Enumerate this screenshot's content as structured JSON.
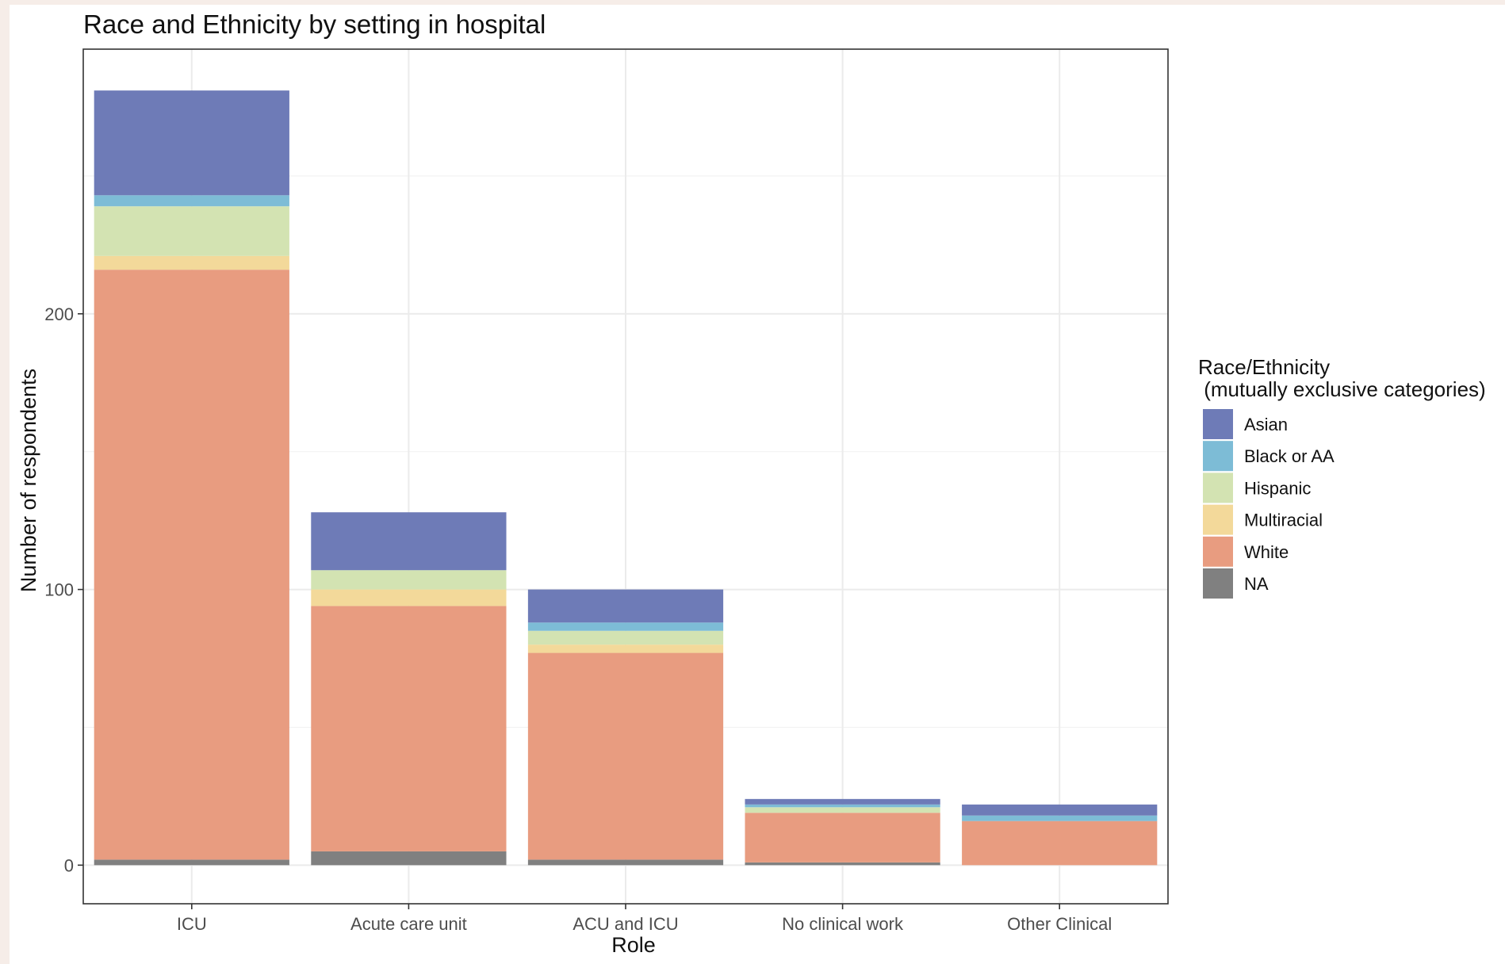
{
  "chart_data": {
    "type": "bar",
    "stacked": true,
    "title": "Race and Ethnicity by setting in hospital",
    "xlabel": "Role",
    "ylabel": "Number of respondents",
    "categories": [
      "ICU",
      "Acute care unit",
      "ACU and ICU",
      "No clinical work",
      "Other Clinical"
    ],
    "yticks": [
      0,
      100,
      200
    ],
    "ylim": [
      -14,
      296
    ],
    "grid": true,
    "legend": {
      "title_line1": "Race/Ethnicity",
      "title_line2": " (mutually exclusive categories)",
      "position": "right"
    },
    "series": [
      {
        "name": "NA",
        "color": "#808080",
        "values": [
          2,
          5,
          2,
          1,
          0
        ]
      },
      {
        "name": "White",
        "color": "#e89c80",
        "values": [
          214,
          89,
          75,
          18,
          16
        ]
      },
      {
        "name": "Multiracial",
        "color": "#f3d99a",
        "values": [
          5,
          6,
          3,
          0,
          0
        ]
      },
      {
        "name": "Hispanic",
        "color": "#d3e3b2",
        "values": [
          18,
          7,
          5,
          2,
          0
        ]
      },
      {
        "name": "Black or AA",
        "color": "#7dbcd6",
        "values": [
          4,
          0,
          3,
          1,
          2
        ]
      },
      {
        "name": "Asian",
        "color": "#6e7bb7",
        "values": [
          38,
          21,
          12,
          2,
          4
        ]
      }
    ],
    "legend_order": [
      "Asian",
      "Black or AA",
      "Hispanic",
      "Multiracial",
      "White",
      "NA"
    ]
  }
}
